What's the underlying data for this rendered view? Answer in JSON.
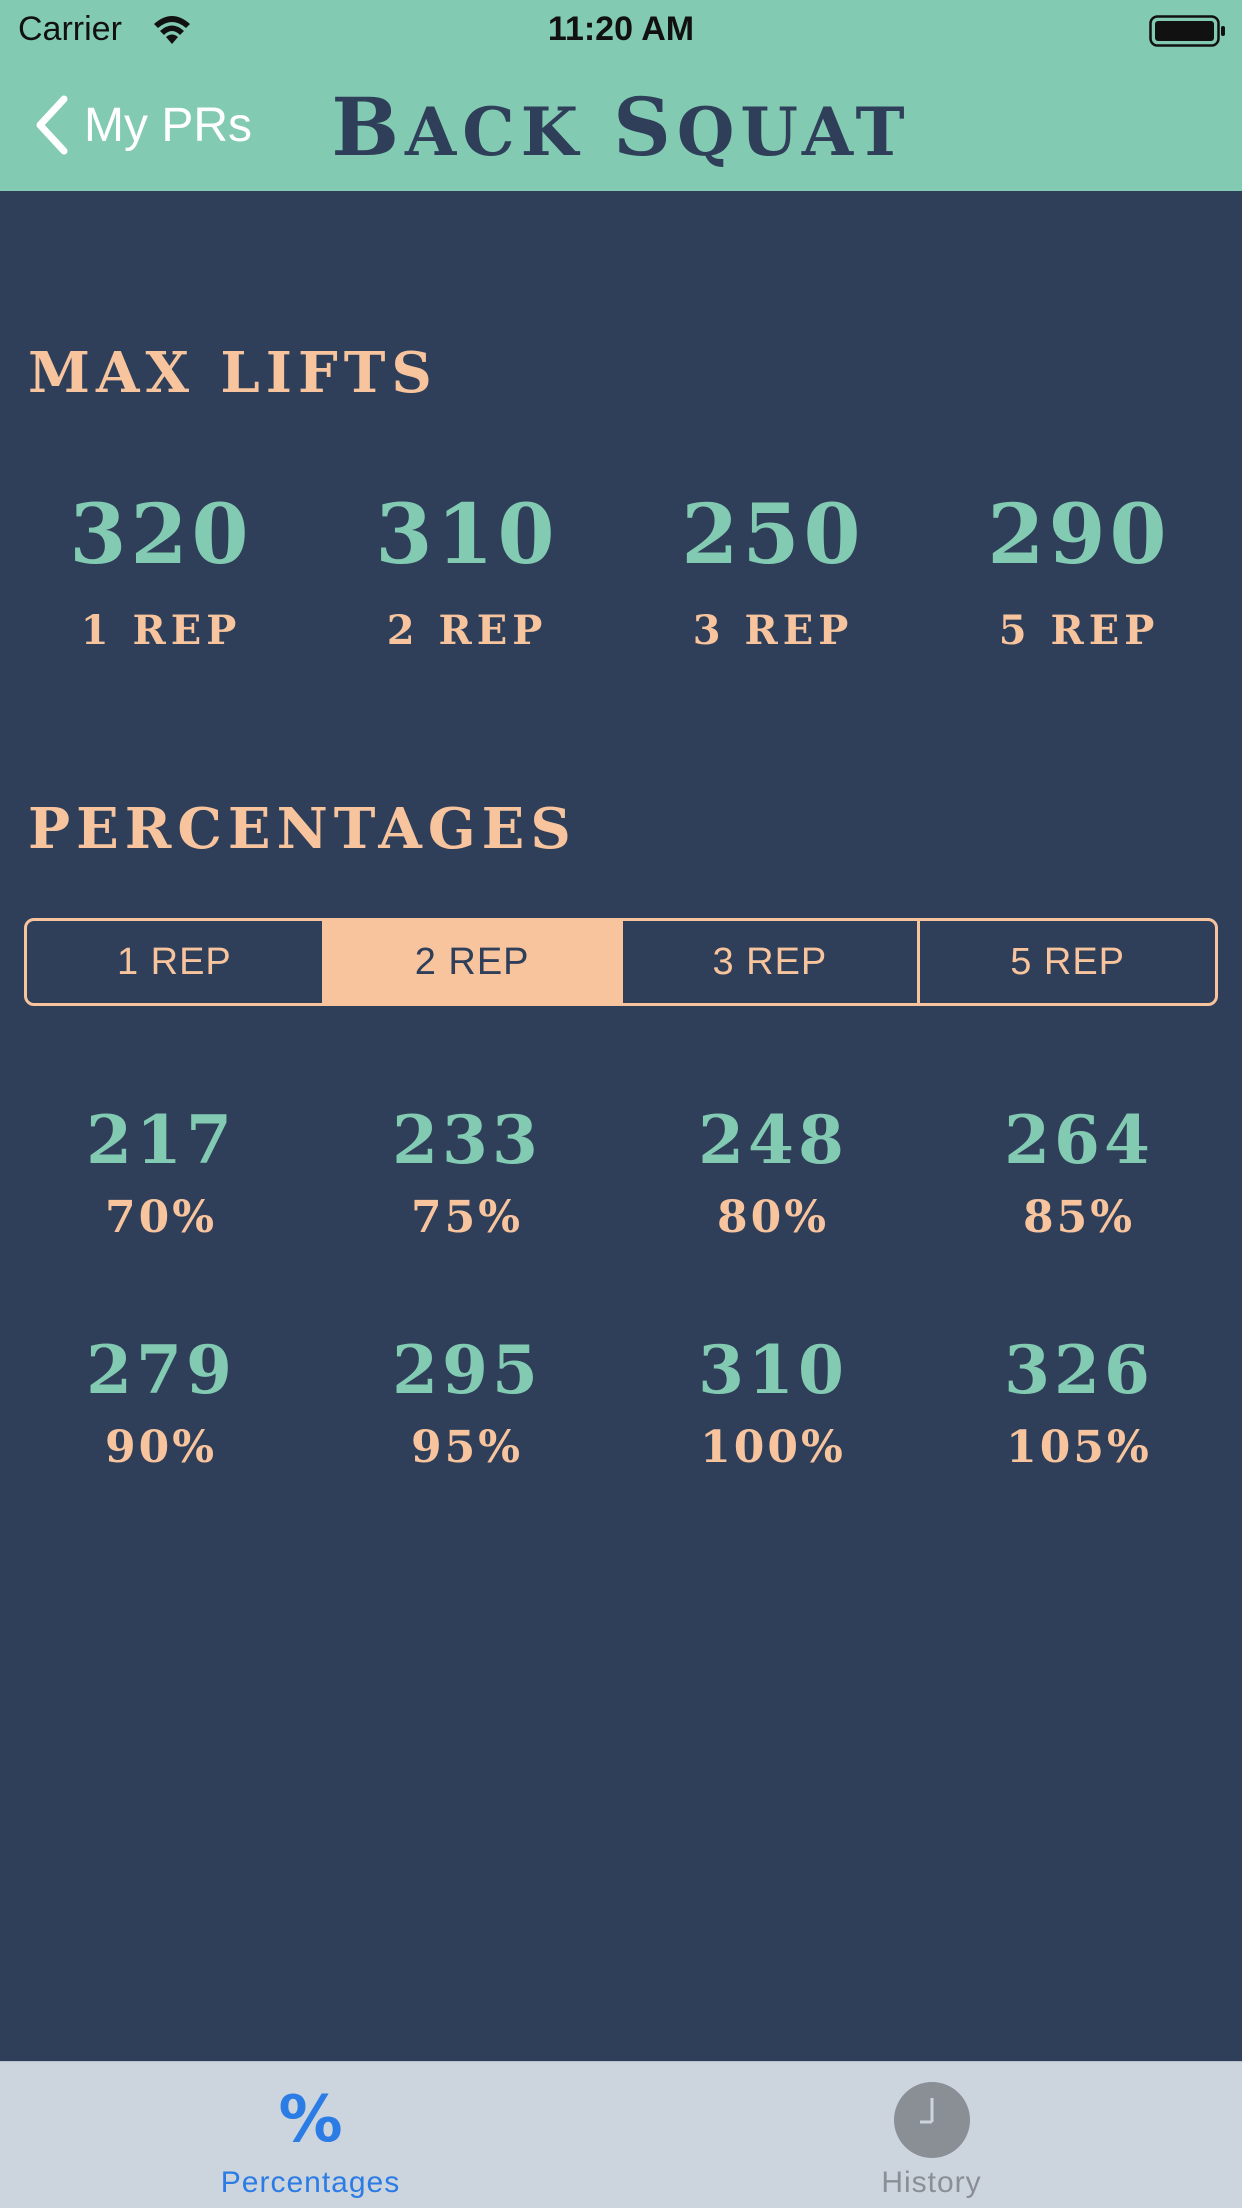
{
  "status_bar": {
    "carrier": "Carrier",
    "time": "11:20 AM",
    "wifi_icon": "wifi-icon",
    "battery_icon": "battery-icon"
  },
  "nav": {
    "back_label": "My PRs",
    "back_icon": "chevron-left-icon",
    "title_first_initial": "B",
    "title_first_rest": "ack",
    "title_second_initial": "S",
    "title_second_rest": "quat"
  },
  "max_lifts": {
    "header": "MAX LIFTS",
    "items": [
      {
        "value": "320",
        "label": "1 REP"
      },
      {
        "value": "310",
        "label": "2 REP"
      },
      {
        "value": "250",
        "label": "3 REP"
      },
      {
        "value": "290",
        "label": "5 REP"
      }
    ]
  },
  "percentages": {
    "header": "PERCENTAGES",
    "segments": [
      "1 REP",
      "2 REP",
      "3 REP",
      "5 REP"
    ],
    "selected_segment": "2 REP",
    "rows": [
      [
        {
          "value": "217",
          "label": "70%"
        },
        {
          "value": "233",
          "label": "75%"
        },
        {
          "value": "248",
          "label": "80%"
        },
        {
          "value": "264",
          "label": "85%"
        }
      ],
      [
        {
          "value": "279",
          "label": "90%"
        },
        {
          "value": "295",
          "label": "95%"
        },
        {
          "value": "310",
          "label": "100%"
        },
        {
          "value": "326",
          "label": "105%"
        }
      ]
    ]
  },
  "tab_bar": {
    "tabs": [
      {
        "label": "Percentages",
        "icon": "percent-icon",
        "active": true
      },
      {
        "label": "History",
        "icon": "clock-icon",
        "active": false
      }
    ]
  },
  "colors": {
    "header_bg": "#83cab3",
    "body_bg": "#2f3f59",
    "accent_peach": "#f7c49e",
    "accent_mint": "#83cab3",
    "tab_bar_bg": "#ccd4de",
    "tab_active": "#2c7ce5",
    "tab_inactive": "#8a8f96"
  }
}
